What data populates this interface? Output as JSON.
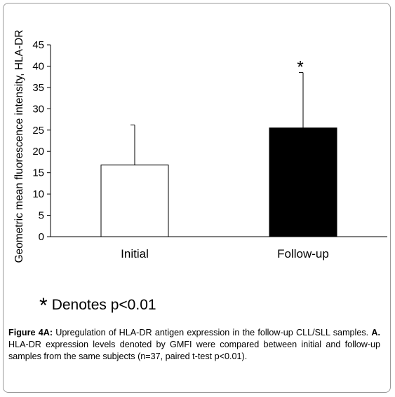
{
  "chart_data": {
    "type": "bar",
    "categories": [
      "Initial",
      "Follow-up"
    ],
    "values": [
      16.8,
      25.5
    ],
    "error_upper": [
      26.2,
      38.5
    ],
    "bar_colors": [
      "#ffffff",
      "#000000"
    ],
    "significance_marks": [
      "",
      "*"
    ],
    "ylabel": "Geometric mean fluorescence intensity, HLA-DR",
    "ylim": [
      0,
      45
    ],
    "yticks": [
      0,
      5,
      10,
      15,
      20,
      25,
      30,
      35,
      40,
      45
    ],
    "grid": false
  },
  "legend_note": {
    "star": "*",
    "text": "Denotes p<0.01"
  },
  "caption": {
    "label": "Figure 4A:",
    "text1": " Upregulation of HLA-DR antigen expression in the follow-up CLL/SLL samples. ",
    "label2": "A.",
    "text2": " HLA-DR expression levels denoted by GMFI were compared between initial and follow-up samples from the same subjects (n=37, paired t-test p<0.01)."
  }
}
